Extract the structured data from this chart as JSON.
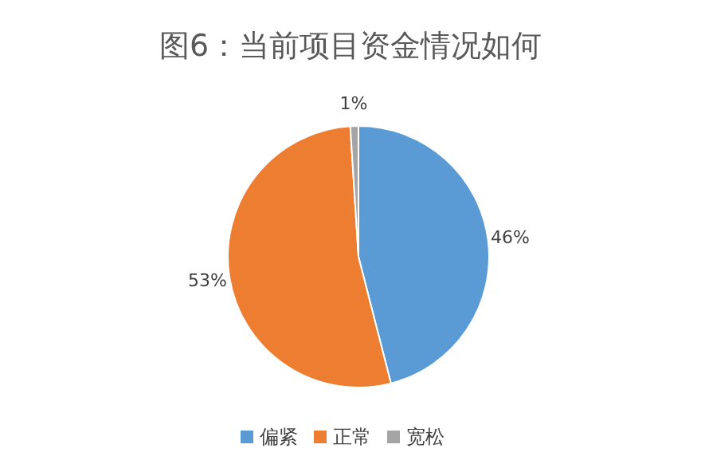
{
  "chart_data": {
    "type": "pie",
    "title": "图6：当前项目资金情况如何",
    "categories": [
      "偏紧",
      "正常",
      "宽松"
    ],
    "values": [
      46,
      53,
      1
    ],
    "colors": [
      "#5b9bd5",
      "#ed7d31",
      "#a5a5a5"
    ],
    "value_labels": [
      "46%",
      "53%",
      "1%"
    ],
    "legend": "bottom"
  }
}
